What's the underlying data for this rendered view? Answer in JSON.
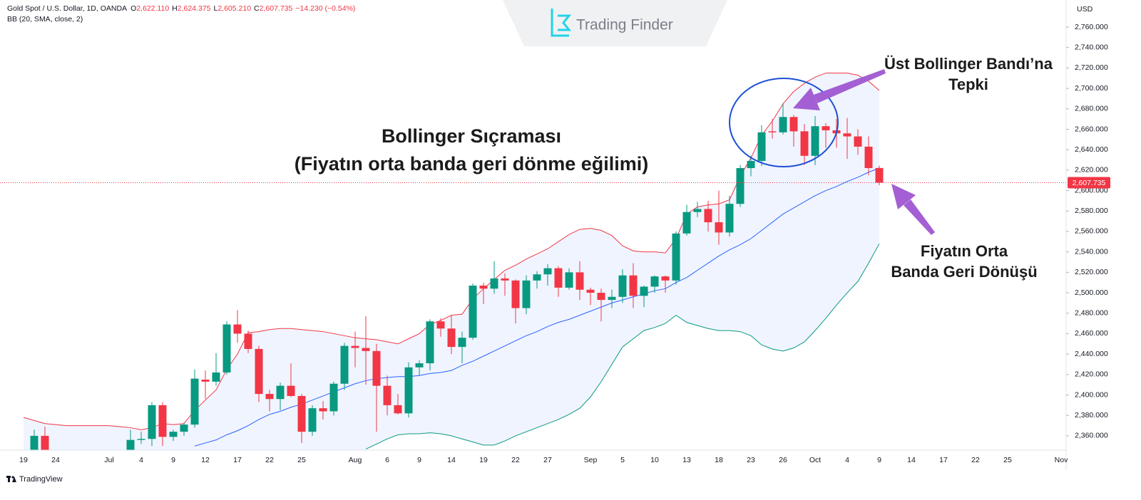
{
  "header": {
    "symbol": "Gold Spot / U.S. Dollar, 1D, OANDA",
    "ohlc": [
      {
        "key": "O",
        "value": "2,622.110"
      },
      {
        "key": "H",
        "value": "2,624.375"
      },
      {
        "key": "L",
        "value": "2,605.210"
      },
      {
        "key": "C",
        "value": "2,607.735"
      }
    ],
    "change": "−14.230 (−0.54%)"
  },
  "indicator": "BB (20, SMA, close, 2)",
  "currency": "USD",
  "logo": "Trading Finder",
  "footer": "TradingView",
  "chart_data": {
    "type": "candlestick",
    "categories": [
      "19",
      null,
      null,
      "24",
      null,
      null,
      null,
      null,
      "Jul",
      null,
      null,
      "4",
      null,
      null,
      "9",
      null,
      null,
      "12",
      null,
      null,
      "17",
      null,
      null,
      "22",
      null,
      null,
      "25",
      null,
      null,
      null,
      null,
      "Aug",
      null,
      null,
      "6",
      null,
      null,
      "9",
      null,
      null,
      "14",
      null,
      null,
      "19",
      null,
      null,
      "22",
      null,
      null,
      "27",
      null,
      null,
      null,
      "Sep",
      null,
      null,
      "5",
      null,
      null,
      "10",
      null,
      null,
      "13",
      null,
      null,
      "18",
      null,
      null,
      "23",
      null,
      null,
      "26",
      null,
      null,
      "Oct",
      null,
      null,
      "4",
      null,
      null,
      "9",
      null,
      null,
      "14",
      null,
      null,
      "17",
      null,
      null,
      "22",
      null,
      null,
      "25",
      null,
      null,
      null,
      null,
      "Nov"
    ],
    "open": [
      null,
      2329,
      2360,
      null,
      null,
      null,
      null,
      null,
      null,
      null,
      2330,
      2356,
      2357,
      2390,
      2359,
      2364,
      2371,
      2415,
      2413,
      2422,
      2469,
      2460,
      2445,
      2401,
      2396,
      2409,
      2399,
      2364,
      2387,
      2384,
      2411,
      2448,
      2446,
      2443,
      2409,
      2390,
      2382,
      2427,
      2431,
      2472,
      2465,
      2447,
      2456,
      2507,
      2504,
      2514,
      2512,
      2485,
      2512,
      2518,
      2524,
      2505,
      2520,
      2503,
      2500,
      2493,
      2496,
      2517,
      2497,
      2506,
      2516,
      2512,
      2558,
      2579,
      2582,
      2569,
      2559,
      2587,
      2622,
      2629,
      2658,
      2657,
      2672,
      2658,
      2634,
      2663,
      2659,
      2656,
      2653,
      2643,
      2622.11,
      null,
      null,
      null,
      null,
      null,
      null,
      null,
      null,
      null,
      null,
      null,
      null,
      null,
      null,
      null,
      null,
      null
    ],
    "high": [
      null,
      2366,
      2369,
      null,
      null,
      null,
      null,
      null,
      null,
      null,
      2366,
      2364,
      2393,
      2393,
      2366,
      2373,
      2425,
      2424,
      2441,
      2472,
      2483,
      2463,
      2448,
      2405,
      2412,
      2431,
      2401,
      2390,
      2394,
      2413,
      2451,
      2462,
      2477,
      2450,
      2419,
      2401,
      2432,
      2434,
      2474,
      2475,
      2478,
      2462,
      2509,
      2510,
      2531,
      2519,
      2513,
      2517,
      2521,
      2528,
      2526,
      2524,
      2531,
      2505,
      2504,
      2503,
      2523,
      2529,
      2507,
      2517,
      2517,
      2560,
      2586,
      2589,
      2590,
      2600,
      2595,
      2625,
      2634,
      2664,
      2670,
      2685,
      2674,
      2665,
      2673,
      2666,
      2670,
      2671,
      2660,
      2653,
      2624.375,
      null,
      null,
      null,
      null,
      null,
      null,
      null,
      null,
      null,
      null,
      null,
      null,
      null,
      null,
      null,
      null,
      null
    ],
    "low": [
      null,
      2326,
      2316,
      null,
      null,
      null,
      null,
      null,
      null,
      null,
      2327,
      2352,
      2350,
      2350,
      2355,
      2360,
      2368,
      2396,
      2409,
      2420,
      2451,
      2441,
      2393,
      2384,
      2385,
      2398,
      2353,
      2360,
      2376,
      2380,
      2405,
      2427,
      2410,
      2364,
      2380,
      2381,
      2378,
      2419,
      2424,
      2457,
      2440,
      2431,
      2454,
      2489,
      2499,
      2497,
      2470,
      2479,
      2504,
      2507,
      2496,
      2503,
      2493,
      2488,
      2472,
      2485,
      2490,
      2485,
      2486,
      2500,
      2500,
      2508,
      2556,
      2574,
      2560,
      2547,
      2555,
      2584,
      2614,
      2624,
      2651,
      2655,
      2643,
      2625,
      2625,
      2642,
      2642,
      2631,
      2635,
      2615,
      2605.21,
      null,
      null,
      null,
      null,
      null,
      null,
      null,
      null,
      null,
      null,
      null,
      null,
      null,
      null,
      null,
      null,
      null
    ],
    "close": [
      null,
      2360,
      2321,
      null,
      null,
      null,
      null,
      null,
      null,
      null,
      2356,
      2357,
      2390,
      2359,
      2364,
      2371,
      2416,
      2413,
      2422,
      2469,
      2460,
      2445,
      2401,
      2396,
      2409,
      2399,
      2364,
      2387,
      2384,
      2411,
      2448,
      2446,
      2443,
      2409,
      2390,
      2382,
      2427,
      2431,
      2472,
      2465,
      2447,
      2456,
      2507,
      2504,
      2514,
      2512,
      2485,
      2512,
      2518,
      2524,
      2505,
      2520,
      2503,
      2500,
      2493,
      2496,
      2517,
      2497,
      2506,
      2516,
      2512,
      2558,
      2579,
      2582,
      2569,
      2559,
      2587,
      2622,
      2629,
      2657,
      2657,
      2672,
      2658,
      2634,
      2663,
      2659,
      2656,
      2653,
      2643,
      2622,
      2607.735,
      null,
      null,
      null,
      null,
      null,
      null,
      null,
      null,
      null,
      null,
      null,
      null,
      null,
      null,
      null,
      null,
      null
    ],
    "up_color": "#089981",
    "down_color": "#f23645",
    "bands": [
      {
        "color": "#f23645",
        "values": [
          2378,
          2375,
          2372,
          2371,
          2370,
          2370,
          2370,
          2370,
          2370,
          2369,
          2368,
          2366,
          2368,
          2372,
          2371,
          2372,
          2385,
          2395,
          2405,
          2425,
          2440,
          2461,
          2462,
          2464,
          2465,
          2465,
          2464,
          2463,
          2462,
          2460,
          2458,
          2456,
          2455,
          2454,
          2452,
          2450,
          2455,
          2460,
          2469,
          2473,
          2478,
          2479,
          2494,
          2504,
          2513,
          2522,
          2527,
          2533,
          2538,
          2543,
          2550,
          2557,
          2562,
          2563,
          2561,
          2556,
          2546,
          2541,
          2540,
          2540,
          2539,
          2553,
          2577,
          2584,
          2586,
          2587,
          2591,
          2614,
          2632,
          2654,
          2668,
          2685,
          2697,
          2705,
          2711,
          2715,
          2715,
          2715,
          2713,
          2707,
          2698,
          null,
          null,
          null,
          null,
          null,
          null,
          null,
          null,
          null,
          null,
          null,
          null,
          null,
          null,
          null,
          null,
          null
        ]
      },
      {
        "color": "#2962ff",
        "values": [
          null,
          null,
          null,
          null,
          null,
          null,
          null,
          null,
          null,
          null,
          null,
          null,
          null,
          null,
          null,
          null,
          2350,
          2353,
          2356,
          2361,
          2365,
          2370,
          2376,
          2381,
          2384,
          2388,
          2391,
          2395,
          2399,
          2403,
          2407,
          2411,
          2414,
          2416,
          2417,
          2418,
          2418,
          2419,
          2421,
          2422,
          2424,
          2429,
          2433,
          2438,
          2443,
          2448,
          2453,
          2458,
          2462,
          2467,
          2471,
          2474,
          2478,
          2482,
          2486,
          2490,
          2493,
          2496,
          2499,
          2502,
          2504,
          2510,
          2515,
          2522,
          2529,
          2536,
          2542,
          2547,
          2553,
          2561,
          2569,
          2577,
          2583,
          2589,
          2595,
          2600,
          2604,
          2609,
          2613,
          2618,
          2622,
          null,
          null,
          null,
          null,
          null,
          null,
          null,
          null,
          null,
          null,
          null,
          null,
          null,
          null,
          null,
          null,
          null
        ]
      },
      {
        "color": "#089981",
        "values": [
          null,
          null,
          null,
          null,
          null,
          null,
          null,
          null,
          null,
          null,
          null,
          null,
          null,
          null,
          null,
          null,
          null,
          null,
          null,
          null,
          null,
          null,
          null,
          null,
          null,
          null,
          null,
          null,
          null,
          null,
          null,
          null,
          2347,
          2352,
          2357,
          2361,
          2362,
          2362,
          2363,
          2362,
          2360,
          2357,
          2354,
          2351,
          2351,
          2355,
          2360,
          2364,
          2368,
          2372,
          2376,
          2381,
          2387,
          2398,
          2413,
          2430,
          2447,
          2455,
          2463,
          2466,
          2470,
          2478,
          2471,
          2468,
          2465,
          2463,
          2463,
          2462,
          2458,
          2449,
          2445,
          2443,
          2446,
          2452,
          2463,
          2475,
          2488,
          2500,
          2511,
          2529,
          2548,
          null,
          null,
          null,
          null,
          null,
          null,
          null,
          null,
          null,
          null,
          null,
          null,
          null,
          null,
          null,
          null,
          null
        ]
      }
    ],
    "band_fill": "rgba(41,98,255,0.07)",
    "ylim": [
      2346,
      2786.5
    ],
    "yticks": [
      {
        "value": 2360,
        "label": "2,360.000"
      },
      {
        "value": 2380,
        "label": "2,380.000"
      },
      {
        "value": 2400,
        "label": "2,400.000"
      },
      {
        "value": 2420,
        "label": "2,420.000"
      },
      {
        "value": 2440,
        "label": "2,440.000"
      },
      {
        "value": 2460,
        "label": "2,460.000"
      },
      {
        "value": 2480,
        "label": "2,480.000"
      },
      {
        "value": 2500,
        "label": "2,500.000"
      },
      {
        "value": 2520,
        "label": "2,520.000"
      },
      {
        "value": 2540,
        "label": "2,540.000"
      },
      {
        "value": 2560,
        "label": "2,560.000"
      },
      {
        "value": 2580,
        "label": "2,580.000"
      },
      {
        "value": 2600,
        "label": "2,600.000"
      },
      {
        "value": 2620,
        "label": "2,620.000"
      },
      {
        "value": 2640,
        "label": "2,640.000"
      },
      {
        "value": 2660,
        "label": "2,660.000"
      },
      {
        "value": 2680,
        "label": "2,680.000"
      },
      {
        "value": 2700,
        "label": "2,700.000"
      },
      {
        "value": 2720,
        "label": "2,720.000"
      },
      {
        "value": 2740,
        "label": "2,740.000"
      },
      {
        "value": 2760,
        "label": "2,760.000"
      }
    ],
    "grid": false,
    "last_price": {
      "value": 2607.735,
      "label": "2,607.735"
    },
    "annotations": [
      "Bollinger Sıçraması",
      "(Fiyatın orta banda geri dönme eğilimi)",
      "Üst Bollinger Bandı’na",
      "Tepki",
      "Fiyatın Orta",
      "Banda Geri Dönüşü"
    ]
  }
}
